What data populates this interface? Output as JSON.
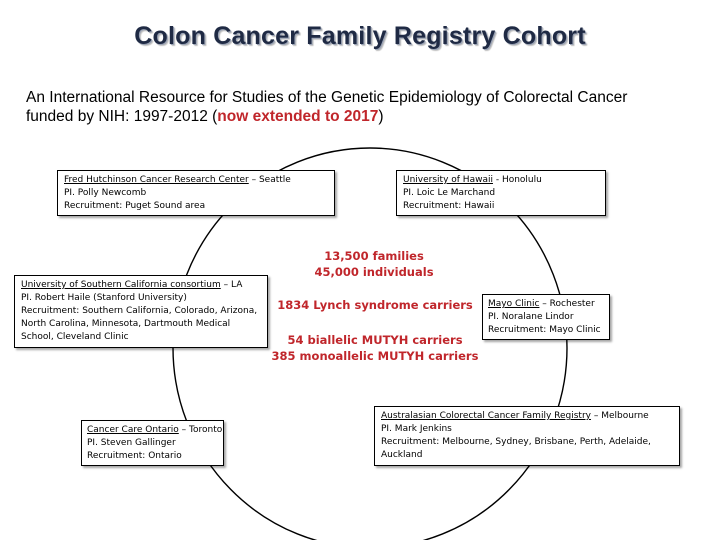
{
  "title": "Colon Cancer Family Registry Cohort",
  "subtitle": {
    "line1": "An International Resource for Studies of the Genetic Epidemiology of Colorectal Cancer",
    "line2_prefix": "funded by NIH: 1997-2012 (",
    "line2_highlight": "now extended to 2017",
    "line2_suffix": ")"
  },
  "sites": {
    "fred_hutch": {
      "name": "Fred Hutchinson Cancer Research Center",
      "location": " – Seattle",
      "pi": "PI. Polly Newcomb",
      "recruitment": "Recruitment: Puget Sound area"
    },
    "hawaii": {
      "name": "University of Hawaii",
      "location": " - Honolulu",
      "pi": "PI. Loic Le Marchand",
      "recruitment": "Recruitment: Hawaii"
    },
    "usc": {
      "name": "University of Southern California consortium",
      "location": " – LA",
      "pi": "PI. Robert Haile (Stanford University)",
      "recruitment_1": "Recruitment: Southern California, Colorado, Arizona,",
      "recruitment_2": "North Carolina, Minnesota, Dartmouth Medical",
      "recruitment_3": "School, Cleveland Clinic"
    },
    "mayo": {
      "name": "Mayo Clinic",
      "location": " – Rochester",
      "pi": "PI. Noralane Lindor",
      "recruitment": "Recruitment: Mayo Clinic"
    },
    "ontario": {
      "name": "Cancer Care Ontario",
      "location": " – Toronto",
      "pi": "PI. Steven Gallinger",
      "recruitment": "Recruitment: Ontario"
    },
    "australasian": {
      "name": "Australasian Colorectal Cancer Family Registry",
      "location": " – Melbourne",
      "pi": "PI. Mark Jenkins",
      "recruitment_1": "Recruitment: Melbourne, Sydney, Brisbane, Perth, Adelaide,",
      "recruitment_2": "Auckland"
    }
  },
  "center": {
    "families": "13,500 families",
    "individuals": "45,000 individuals",
    "lynch": "1834 Lynch syndrome carriers",
    "biallelic": "54 biallelic MUTYH carriers",
    "monoallelic": "385 monoallelic MUTYH carriers"
  },
  "colors": {
    "title": "#1f2a44",
    "highlight": "#c0262b",
    "ring": "#000000"
  }
}
